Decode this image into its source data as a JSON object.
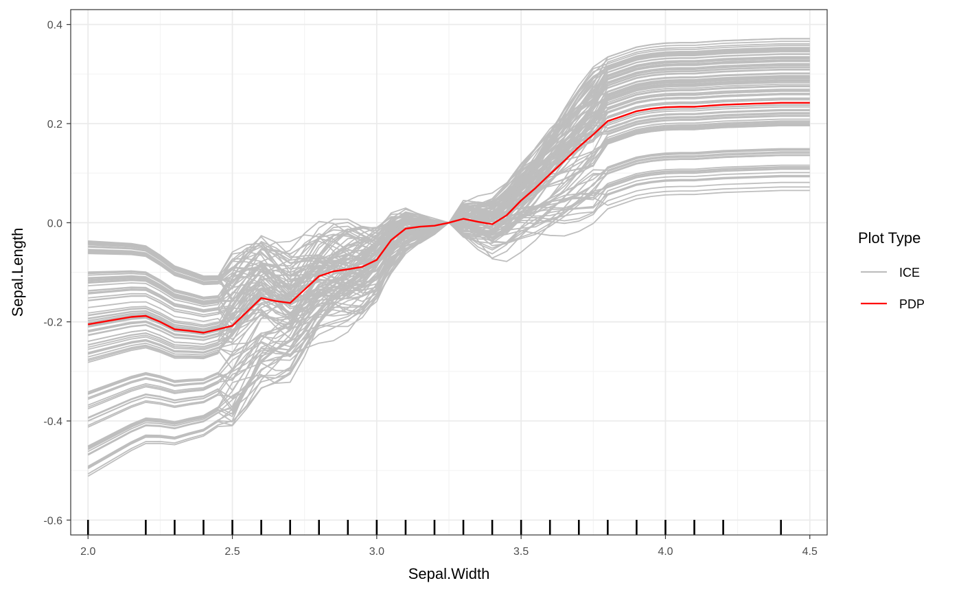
{
  "chart_data": {
    "type": "line",
    "xlabel": "Sepal.Width",
    "ylabel": "Sepal.Length",
    "xlim": [
      1.94,
      4.56
    ],
    "ylim": [
      -0.63,
      0.43
    ],
    "x_ticks": [
      2.0,
      2.5,
      3.0,
      3.5,
      4.0,
      4.5
    ],
    "x_tick_labels": [
      "2.0",
      "2.5",
      "3.0",
      "3.5",
      "4.0",
      "4.5"
    ],
    "y_ticks": [
      -0.6,
      -0.4,
      -0.2,
      0.0,
      0.2,
      0.4
    ],
    "y_tick_labels": [
      "-0.6",
      "-0.4",
      "-0.2",
      "0.0",
      "0.2",
      "0.4"
    ],
    "grid": true,
    "legend": {
      "title": "Plot Type",
      "position": "right",
      "entries": [
        {
          "label": "ICE",
          "color": "#bebebe"
        },
        {
          "label": "PDP",
          "color": "#ff0000"
        }
      ]
    },
    "rug_x": [
      2.0,
      2.2,
      2.3,
      2.4,
      2.5,
      2.6,
      2.7,
      2.8,
      2.9,
      3.0,
      3.1,
      3.2,
      3.3,
      3.4,
      3.5,
      3.6,
      3.7,
      3.8,
      3.9,
      4.0,
      4.1,
      4.2,
      4.4
    ],
    "x": [
      2.0,
      2.05,
      2.1,
      2.15,
      2.2,
      2.25,
      2.3,
      2.35,
      2.4,
      2.45,
      2.5,
      2.55,
      2.6,
      2.65,
      2.7,
      2.75,
      2.8,
      2.85,
      2.9,
      2.95,
      3.0,
      3.05,
      3.1,
      3.15,
      3.2,
      3.25,
      3.3,
      3.35,
      3.4,
      3.45,
      3.5,
      3.55,
      3.6,
      3.65,
      3.7,
      3.75,
      3.8,
      3.85,
      3.9,
      3.95,
      4.0,
      4.05,
      4.1,
      4.15,
      4.2,
      4.25,
      4.3,
      4.35,
      4.4,
      4.45,
      4.5
    ],
    "series": [
      {
        "name": "PDP",
        "color": "#ff0000",
        "values": [
          -0.205,
          -0.2,
          -0.195,
          -0.19,
          -0.188,
          -0.2,
          -0.215,
          -0.218,
          -0.222,
          -0.215,
          -0.208,
          -0.18,
          -0.152,
          -0.158,
          -0.162,
          -0.135,
          -0.108,
          -0.098,
          -0.094,
          -0.089,
          -0.075,
          -0.035,
          -0.012,
          -0.008,
          -0.006,
          0.0,
          0.008,
          0.002,
          -0.003,
          0.015,
          0.045,
          0.07,
          0.098,
          0.125,
          0.153,
          0.178,
          0.205,
          0.215,
          0.225,
          0.23,
          0.233,
          0.234,
          0.234,
          0.236,
          0.238,
          0.239,
          0.24,
          0.241,
          0.242,
          0.242,
          0.242
        ]
      }
    ],
    "ice": {
      "name": "ICE",
      "color": "#bebebe",
      "curve_count": 110
    }
  }
}
